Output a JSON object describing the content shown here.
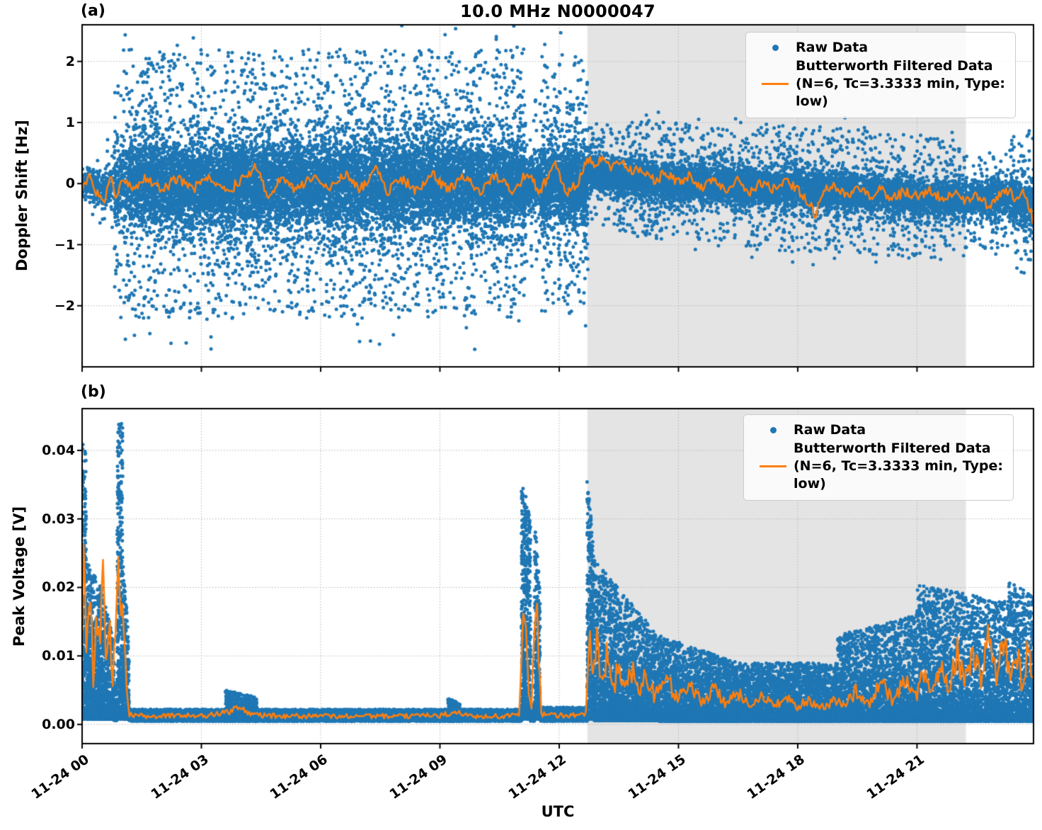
{
  "title": "10.0 MHz N0000047",
  "xlabel": "UTC",
  "panel_labels": [
    "(a)",
    "(b)"
  ],
  "legend": {
    "raw_label": "Raw Data",
    "filtered_label": "Butterworth Filtered Data",
    "filtered_sublabel": "(N=6, Tc=3.3333 min, Type: low)"
  },
  "colors": {
    "raw": "#1f77b4",
    "filtered": "#ff7f0e",
    "shade": "#e4e4e4",
    "grid": "#b5b5b5",
    "axis": "#000000"
  },
  "chart_data": [
    {
      "id": "a",
      "type": "scatter",
      "title": "10.0 MHz N0000047",
      "ylabel": "Doppler Shift [Hz]",
      "ylim": [
        -3.0,
        2.6
      ],
      "yticks": [
        {
          "v": -2,
          "label": "−2"
        },
        {
          "v": -1,
          "label": "−1"
        },
        {
          "v": 0,
          "label": "0"
        },
        {
          "v": 1,
          "label": "1"
        },
        {
          "v": 2,
          "label": "2"
        }
      ],
      "xlim_hours": [
        0,
        23.93
      ],
      "xticks": [
        {
          "h": 0,
          "label": "11-24 00"
        },
        {
          "h": 3,
          "label": "11-24 03"
        },
        {
          "h": 6,
          "label": "11-24 06"
        },
        {
          "h": 9,
          "label": "11-24 09"
        },
        {
          "h": 12,
          "label": "11-24 12"
        },
        {
          "h": 15,
          "label": "11-24 15"
        },
        {
          "h": 18,
          "label": "11-24 18"
        },
        {
          "h": 21,
          "label": "11-24 21"
        }
      ],
      "shade_hours": [
        12.71,
        22.23
      ],
      "scatter_model": "band",
      "raw_segments": [
        [
          0.0,
          0.45,
          0.0,
          -0.05,
          0.28,
          0.32,
          500,
          0.02,
          0.3
        ],
        [
          0.45,
          0.8,
          -0.05,
          0.0,
          0.33,
          0.45,
          350,
          0.05,
          0.5
        ],
        [
          0.8,
          1.1,
          0.0,
          0.0,
          0.6,
          0.95,
          700,
          0.15,
          0.9
        ],
        [
          1.1,
          11.15,
          0.0,
          0.0,
          0.88,
          0.88,
          1250,
          0.13,
          0.75
        ],
        [
          11.15,
          11.55,
          0.0,
          0.0,
          0.5,
          0.5,
          900,
          0.1,
          0.9
        ],
        [
          11.55,
          12.72,
          0.0,
          0.0,
          0.85,
          0.85,
          1250,
          0.13,
          0.75
        ],
        [
          12.72,
          13.5,
          0.22,
          0.12,
          0.3,
          0.32,
          900,
          0.12,
          0.8
        ],
        [
          13.5,
          16.0,
          0.1,
          -0.02,
          0.36,
          0.38,
          900,
          0.12,
          0.8
        ],
        [
          16.0,
          19.0,
          -0.02,
          -0.12,
          0.4,
          0.4,
          850,
          0.12,
          0.8
        ],
        [
          19.0,
          22.2,
          -0.12,
          -0.28,
          0.4,
          0.38,
          800,
          0.12,
          0.8
        ],
        [
          22.2,
          23.35,
          -0.28,
          -0.22,
          0.34,
          0.34,
          700,
          0.1,
          0.7
        ],
        [
          23.35,
          23.93,
          -0.2,
          -0.45,
          0.45,
          0.5,
          750,
          0.12,
          0.8
        ]
      ],
      "filtered_points": [
        [
          0,
          -0.05
        ],
        [
          0.2,
          0.12
        ],
        [
          0.35,
          -0.15
        ],
        [
          0.55,
          -0.35
        ],
        [
          0.7,
          0.1
        ],
        [
          0.85,
          -0.2
        ],
        [
          1.0,
          0.05
        ],
        [
          1.3,
          -0.1
        ],
        [
          1.6,
          0.08
        ],
        [
          2.0,
          -0.12
        ],
        [
          2.4,
          0.1
        ],
        [
          2.8,
          -0.08
        ],
        [
          3.2,
          0.12
        ],
        [
          3.6,
          -0.15
        ],
        [
          4.0,
          0.05
        ],
        [
          4.4,
          0.3
        ],
        [
          4.7,
          -0.28
        ],
        [
          5.0,
          0.1
        ],
        [
          5.4,
          -0.1
        ],
        [
          5.8,
          0.12
        ],
        [
          6.2,
          -0.12
        ],
        [
          6.6,
          0.18
        ],
        [
          7.0,
          -0.1
        ],
        [
          7.4,
          0.28
        ],
        [
          7.7,
          -0.15
        ],
        [
          8.0,
          0.1
        ],
        [
          8.4,
          -0.12
        ],
        [
          8.8,
          0.15
        ],
        [
          9.2,
          -0.1
        ],
        [
          9.6,
          0.1
        ],
        [
          10.0,
          -0.15
        ],
        [
          10.4,
          0.12
        ],
        [
          10.8,
          -0.1
        ],
        [
          11.2,
          0.15
        ],
        [
          11.5,
          -0.12
        ],
        [
          11.9,
          0.28
        ],
        [
          12.2,
          -0.18
        ],
        [
          12.5,
          0.05
        ],
        [
          12.72,
          0.42
        ],
        [
          12.9,
          0.3
        ],
        [
          13.1,
          0.44
        ],
        [
          13.35,
          0.26
        ],
        [
          13.6,
          0.38
        ],
        [
          13.85,
          0.18
        ],
        [
          14.1,
          0.25
        ],
        [
          14.4,
          0.05
        ],
        [
          14.7,
          0.18
        ],
        [
          15.0,
          0.02
        ],
        [
          15.3,
          0.15
        ],
        [
          15.6,
          -0.08
        ],
        [
          15.9,
          0.08
        ],
        [
          16.2,
          -0.1
        ],
        [
          16.5,
          0.05
        ],
        [
          16.8,
          -0.12
        ],
        [
          17.1,
          0.02
        ],
        [
          17.4,
          -0.1
        ],
        [
          17.7,
          0.05
        ],
        [
          18.0,
          -0.1
        ],
        [
          18.3,
          -0.32
        ],
        [
          18.45,
          -0.52
        ],
        [
          18.6,
          -0.15
        ],
        [
          18.9,
          -0.05
        ],
        [
          19.2,
          -0.18
        ],
        [
          19.5,
          -0.08
        ],
        [
          19.8,
          -0.22
        ],
        [
          20.1,
          -0.1
        ],
        [
          20.4,
          -0.25
        ],
        [
          20.7,
          -0.12
        ],
        [
          21.0,
          -0.22
        ],
        [
          21.3,
          -0.1
        ],
        [
          21.6,
          -0.25
        ],
        [
          21.9,
          -0.15
        ],
        [
          22.2,
          -0.3
        ],
        [
          22.5,
          -0.18
        ],
        [
          22.8,
          -0.38
        ],
        [
          23.05,
          -0.22
        ],
        [
          23.3,
          -0.12
        ],
        [
          23.5,
          -0.3
        ],
        [
          23.65,
          -0.15
        ],
        [
          23.8,
          -0.35
        ],
        [
          23.93,
          -0.62
        ]
      ],
      "filtered_jitter": 0.085,
      "series_names": [
        "Raw Data",
        "Butterworth Filtered Data (N=6, Tc=3.3333 min, Type: low)"
      ]
    },
    {
      "id": "b",
      "type": "scatter",
      "ylabel": "Peak Voltage [V]",
      "ylim": [
        -0.0028,
        0.0461
      ],
      "yticks": [
        {
          "v": 0.0,
          "label": "0.00"
        },
        {
          "v": 0.01,
          "label": "0.01"
        },
        {
          "v": 0.02,
          "label": "0.02"
        },
        {
          "v": 0.03,
          "label": "0.03"
        },
        {
          "v": 0.04,
          "label": "0.04"
        }
      ],
      "xlim_hours": [
        0,
        23.93
      ],
      "xticks": [
        {
          "h": 0,
          "label": "11-24 00"
        },
        {
          "h": 3,
          "label": "11-24 03"
        },
        {
          "h": 6,
          "label": "11-24 06"
        },
        {
          "h": 9,
          "label": "11-24 09"
        },
        {
          "h": 12,
          "label": "11-24 12"
        },
        {
          "h": 15,
          "label": "11-24 15"
        },
        {
          "h": 18,
          "label": "11-24 18"
        },
        {
          "h": 21,
          "label": "11-24 21"
        }
      ],
      "shade_hours": [
        12.71,
        22.23
      ],
      "scatter_model": "floor",
      "raw_segments": [
        [
          0.0,
          0.1,
          0.0008,
          0.041,
          0.041,
          2600,
          2.0
        ],
        [
          0.1,
          0.5,
          0.0008,
          0.024,
          0.02,
          2200,
          2.2
        ],
        [
          0.5,
          0.8,
          0.0008,
          0.02,
          0.012,
          2000,
          2.4
        ],
        [
          0.8,
          0.88,
          0.0006,
          0.006,
          0.006,
          1200,
          2.0
        ],
        [
          0.88,
          1.02,
          0.0008,
          0.044,
          0.044,
          2600,
          1.8
        ],
        [
          1.02,
          1.18,
          0.0008,
          0.026,
          0.012,
          2000,
          2.2
        ],
        [
          1.18,
          3.6,
          0.0005,
          0.0022,
          0.0022,
          900,
          1.6
        ],
        [
          3.6,
          4.4,
          0.0005,
          0.005,
          0.004,
          1000,
          2.2
        ],
        [
          4.4,
          9.2,
          0.0005,
          0.0022,
          0.0022,
          900,
          1.6
        ],
        [
          9.2,
          9.5,
          0.0005,
          0.004,
          0.003,
          1000,
          2.2
        ],
        [
          9.5,
          11.05,
          0.0005,
          0.0022,
          0.0022,
          900,
          1.6
        ],
        [
          11.05,
          11.28,
          0.0008,
          0.0367,
          0.03,
          2400,
          1.7
        ],
        [
          11.28,
          11.38,
          0.0005,
          0.003,
          0.003,
          900,
          1.8
        ],
        [
          11.38,
          11.52,
          0.0008,
          0.031,
          0.019,
          2200,
          1.7
        ],
        [
          11.52,
          12.7,
          0.0005,
          0.0025,
          0.0025,
          900,
          1.6
        ],
        [
          12.7,
          12.88,
          0.0008,
          0.0368,
          0.025,
          2400,
          1.7
        ],
        [
          12.88,
          14.5,
          0.0006,
          0.024,
          0.013,
          2000,
          3.0
        ],
        [
          14.5,
          16.5,
          0.0005,
          0.013,
          0.009,
          1600,
          2.8
        ],
        [
          16.5,
          19.0,
          0.0005,
          0.009,
          0.009,
          1400,
          2.6
        ],
        [
          19.0,
          21.0,
          0.0005,
          0.013,
          0.016,
          1500,
          2.8
        ],
        [
          21.0,
          22.3,
          0.0005,
          0.0205,
          0.019,
          1600,
          2.8
        ],
        [
          22.3,
          23.3,
          0.0005,
          0.019,
          0.018,
          1500,
          2.8
        ],
        [
          23.3,
          23.93,
          0.0005,
          0.021,
          0.019,
          1600,
          2.6
        ]
      ],
      "filtered_points": [
        [
          0,
          0.012
        ],
        [
          0.05,
          0.029
        ],
        [
          0.12,
          0.009
        ],
        [
          0.2,
          0.021
        ],
        [
          0.28,
          0.007
        ],
        [
          0.36,
          0.018
        ],
        [
          0.44,
          0.009
        ],
        [
          0.52,
          0.023
        ],
        [
          0.6,
          0.01
        ],
        [
          0.68,
          0.017
        ],
        [
          0.76,
          0.006
        ],
        [
          0.84,
          0.012
        ],
        [
          0.9,
          0.0265
        ],
        [
          0.97,
          0.013
        ],
        [
          1.02,
          0.019
        ],
        [
          1.1,
          0.007
        ],
        [
          1.17,
          0.0015
        ],
        [
          1.5,
          0.0012
        ],
        [
          2.0,
          0.0012
        ],
        [
          2.5,
          0.0013
        ],
        [
          3.0,
          0.0012
        ],
        [
          3.7,
          0.0018
        ],
        [
          4.0,
          0.0028
        ],
        [
          4.2,
          0.0016
        ],
        [
          4.5,
          0.0013
        ],
        [
          5.0,
          0.0012
        ],
        [
          6.0,
          0.0012
        ],
        [
          7.0,
          0.0012
        ],
        [
          8.0,
          0.0012
        ],
        [
          9.0,
          0.0013
        ],
        [
          9.4,
          0.0018
        ],
        [
          9.7,
          0.0012
        ],
        [
          10.5,
          0.0012
        ],
        [
          11.0,
          0.0014
        ],
        [
          11.12,
          0.019
        ],
        [
          11.22,
          0.005
        ],
        [
          11.3,
          0.0015
        ],
        [
          11.42,
          0.019
        ],
        [
          11.55,
          0.0015
        ],
        [
          12.0,
          0.0013
        ],
        [
          12.5,
          0.0014
        ],
        [
          12.68,
          0.0015
        ],
        [
          12.76,
          0.0155
        ],
        [
          12.84,
          0.007
        ],
        [
          12.95,
          0.0135
        ],
        [
          13.05,
          0.0055
        ],
        [
          13.2,
          0.01
        ],
        [
          13.35,
          0.0045
        ],
        [
          13.5,
          0.009
        ],
        [
          13.65,
          0.005
        ],
        [
          13.8,
          0.0085
        ],
        [
          14.0,
          0.0045
        ],
        [
          14.2,
          0.0075
        ],
        [
          14.4,
          0.004
        ],
        [
          14.7,
          0.0065
        ],
        [
          15.0,
          0.0038
        ],
        [
          15.3,
          0.006
        ],
        [
          15.6,
          0.0033
        ],
        [
          15.9,
          0.005
        ],
        [
          16.2,
          0.003
        ],
        [
          16.5,
          0.0045
        ],
        [
          16.8,
          0.0028
        ],
        [
          17.1,
          0.004
        ],
        [
          17.4,
          0.0027
        ],
        [
          17.7,
          0.0038
        ],
        [
          18.0,
          0.0026
        ],
        [
          18.3,
          0.0036
        ],
        [
          18.6,
          0.0026
        ],
        [
          18.9,
          0.0035
        ],
        [
          19.2,
          0.0028
        ],
        [
          19.5,
          0.005
        ],
        [
          19.8,
          0.0032
        ],
        [
          20.1,
          0.0058
        ],
        [
          20.4,
          0.0035
        ],
        [
          20.7,
          0.0065
        ],
        [
          21.0,
          0.004
        ],
        [
          21.2,
          0.0085
        ],
        [
          21.4,
          0.0045
        ],
        [
          21.6,
          0.009
        ],
        [
          21.8,
          0.005
        ],
        [
          22.0,
          0.0105
        ],
        [
          22.2,
          0.006
        ],
        [
          22.4,
          0.0115
        ],
        [
          22.6,
          0.0065
        ],
        [
          22.8,
          0.0125
        ],
        [
          23.0,
          0.007
        ],
        [
          23.2,
          0.0135
        ],
        [
          23.35,
          0.0065
        ],
        [
          23.5,
          0.011
        ],
        [
          23.65,
          0.0055
        ],
        [
          23.8,
          0.0125
        ],
        [
          23.93,
          0.0045
        ]
      ],
      "filtered_jitter": 0.002,
      "filtered_jitter_ref": 0.008,
      "series_names": [
        "Raw Data",
        "Butterworth Filtered Data (N=6, Tc=3.3333 min, Type: low)"
      ]
    }
  ]
}
